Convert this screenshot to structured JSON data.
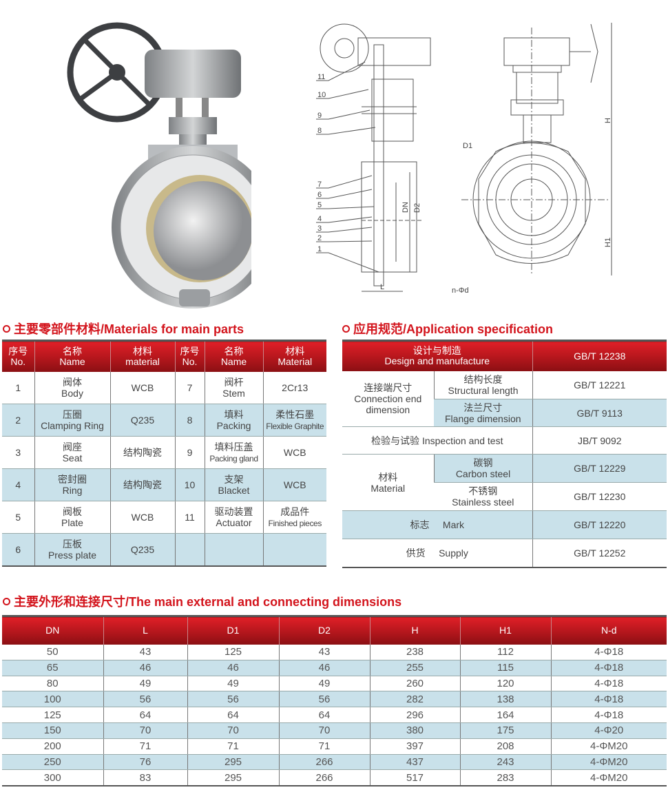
{
  "drawing": {
    "part_numbers": [
      "11",
      "10",
      "9",
      "8",
      "7",
      "6",
      "5",
      "4",
      "3",
      "2",
      "1"
    ],
    "side_labels": {
      "dn": "DN",
      "d2": "D2",
      "l": "L"
    },
    "front_labels": {
      "d1": "D1",
      "h": "H",
      "h1": "H1",
      "n_d": "n-Φd"
    }
  },
  "materials": {
    "title": "主要零部件材料/Materials for main parts",
    "headers": [
      {
        "cn": "序号",
        "en": "No."
      },
      {
        "cn": "名称",
        "en": "Name"
      },
      {
        "cn": "材料",
        "en": "material"
      },
      {
        "cn": "序号",
        "en": "No."
      },
      {
        "cn": "名称",
        "en": "Name"
      },
      {
        "cn": "材料",
        "en": "Material"
      }
    ],
    "rows": [
      [
        {
          "t": "1"
        },
        {
          "cn": "阀体",
          "en": "Body"
        },
        {
          "t": "WCB"
        },
        {
          "t": "7"
        },
        {
          "cn": "阀杆",
          "en": "Stem"
        },
        {
          "t": "2Cr13"
        }
      ],
      [
        {
          "t": "2"
        },
        {
          "cn": "压圈",
          "en": "Clamping Ring"
        },
        {
          "t": "Q235"
        },
        {
          "t": "8"
        },
        {
          "cn": "填料",
          "en": "Packing"
        },
        {
          "cn": "柔性石墨",
          "en": "Flexible Graphite"
        }
      ],
      [
        {
          "t": "3"
        },
        {
          "cn": "阀座",
          "en": "Seat"
        },
        {
          "t": "结构陶瓷"
        },
        {
          "t": "9"
        },
        {
          "cn": "填料压盖",
          "en": "Packing gland"
        },
        {
          "t": "WCB"
        }
      ],
      [
        {
          "t": "4"
        },
        {
          "cn": "密封圈",
          "en": "Ring"
        },
        {
          "t": "结构陶瓷"
        },
        {
          "t": "10"
        },
        {
          "cn": "支架",
          "en": "Blacket"
        },
        {
          "t": "WCB"
        }
      ],
      [
        {
          "t": "5"
        },
        {
          "cn": "阀板",
          "en": "Plate"
        },
        {
          "t": "WCB"
        },
        {
          "t": "11"
        },
        {
          "cn": "驱动装置",
          "en": "Actuator"
        },
        {
          "cn": "成品件",
          "en": "Finished pieces"
        }
      ],
      [
        {
          "t": "6"
        },
        {
          "cn": "压板",
          "en": "Press plate"
        },
        {
          "t": "Q235"
        },
        {
          "t": ""
        },
        {
          "t": ""
        },
        {
          "t": ""
        }
      ]
    ]
  },
  "spec": {
    "title": "应用规范/Application specification",
    "design": {
      "cn": "设计与制造",
      "en": "Design and manufacture",
      "std": "GB/T 12238"
    },
    "connection": {
      "cn": "连接端尺寸",
      "en": "Connection end dimension",
      "structural": {
        "cn": "结构长度",
        "en": "Structural length",
        "std": "GB/T 12221"
      },
      "flange": {
        "cn": "法兰尺寸",
        "en": "Flange dimension",
        "std": "GB/T 9113"
      }
    },
    "inspection": {
      "cn": "检验与试验",
      "en": "Inspection and test",
      "std": "JB/T 9092"
    },
    "material": {
      "cn": "材料",
      "en": "Material",
      "carbon": {
        "cn": "碳钢",
        "en": "Carbon steel",
        "std": "GB/T 12229"
      },
      "stainless": {
        "cn": "不锈钢",
        "en": "Stainless steel",
        "std": "GB/T 12230"
      }
    },
    "mark": {
      "cn": "标志",
      "en": "Mark",
      "std": "GB/T 12220"
    },
    "supply": {
      "cn": "供货",
      "en": "Supply",
      "std": "GB/T 12252"
    }
  },
  "dimensions": {
    "title": "主要外形和连接尺寸/The main external and connecting dimensions",
    "headers": [
      "DN",
      "L",
      "D1",
      "D2",
      "H",
      "H1",
      "N-d"
    ],
    "rows": [
      [
        "50",
        "43",
        "125",
        "43",
        "238",
        "112",
        "4-Φ18"
      ],
      [
        "65",
        "46",
        "46",
        "46",
        "255",
        "115",
        "4-Φ18"
      ],
      [
        "80",
        "49",
        "49",
        "49",
        "260",
        "120",
        "4-Φ18"
      ],
      [
        "100",
        "56",
        "56",
        "56",
        "282",
        "138",
        "4-Φ18"
      ],
      [
        "125",
        "64",
        "64",
        "64",
        "296",
        "164",
        "4-Φ18"
      ],
      [
        "150",
        "70",
        "70",
        "70",
        "380",
        "175",
        "4-Φ20"
      ],
      [
        "200",
        "71",
        "71",
        "71",
        "397",
        "208",
        "4-ΦM20"
      ],
      [
        "250",
        "76",
        "295",
        "266",
        "437",
        "243",
        "4-ΦM20"
      ],
      [
        "300",
        "83",
        "295",
        "266",
        "517",
        "283",
        "4-ΦM20"
      ]
    ]
  },
  "colors": {
    "accent": "#d3141c",
    "header_dark": "#8a0f13",
    "alt_row": "#c9e1ea"
  }
}
